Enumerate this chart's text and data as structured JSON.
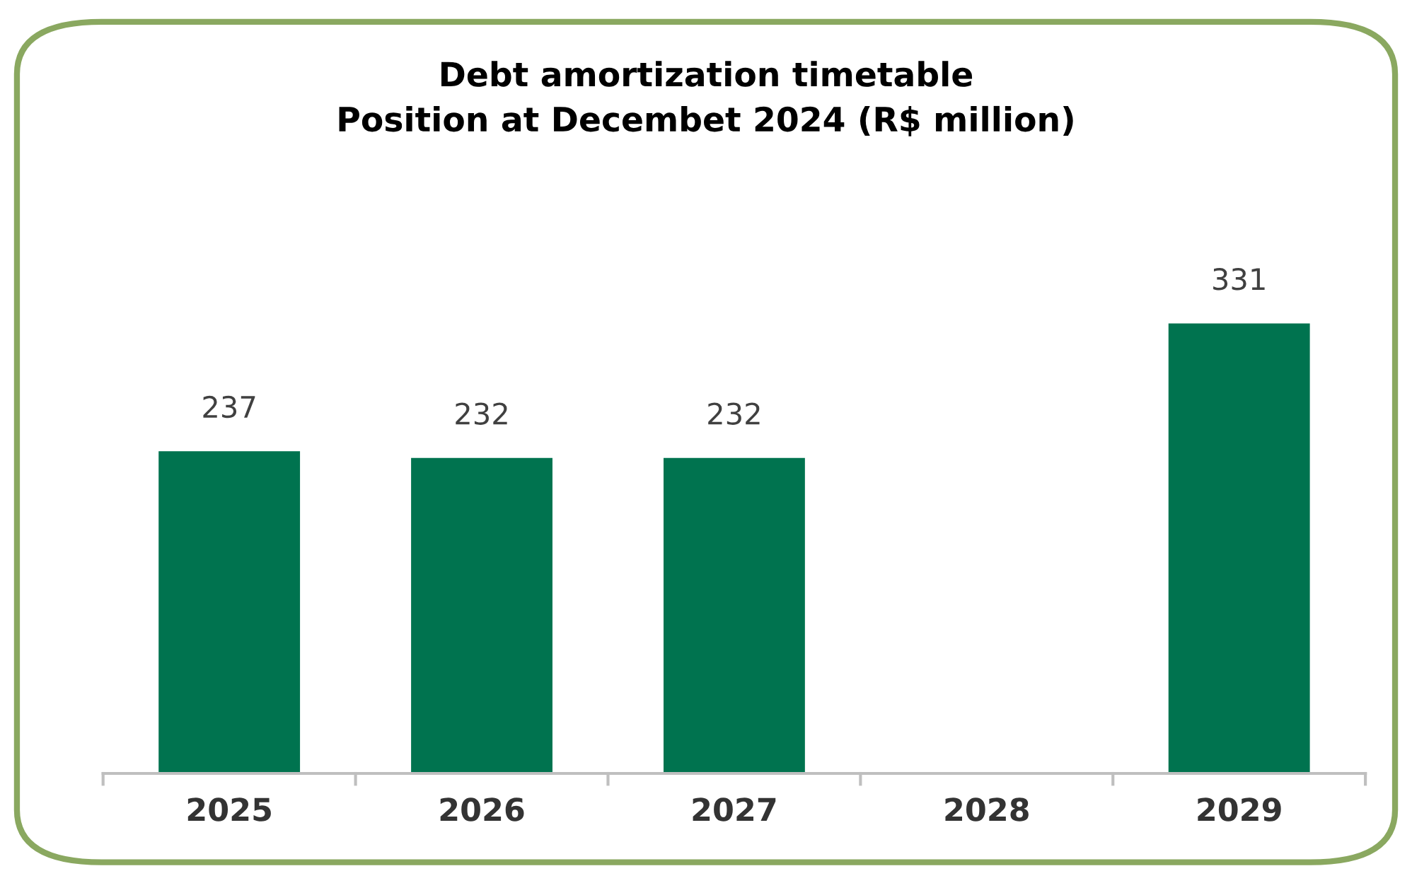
{
  "chart_data": {
    "type": "bar",
    "title": "Debt amortization timetable\nPosition at Decembet 2024 (R$ million)",
    "categories": [
      "2025",
      "2026",
      "2027",
      "2028",
      "2029"
    ],
    "values": [
      237,
      232,
      232,
      null,
      331
    ],
    "color": "#00734f",
    "data_labels": true
  }
}
